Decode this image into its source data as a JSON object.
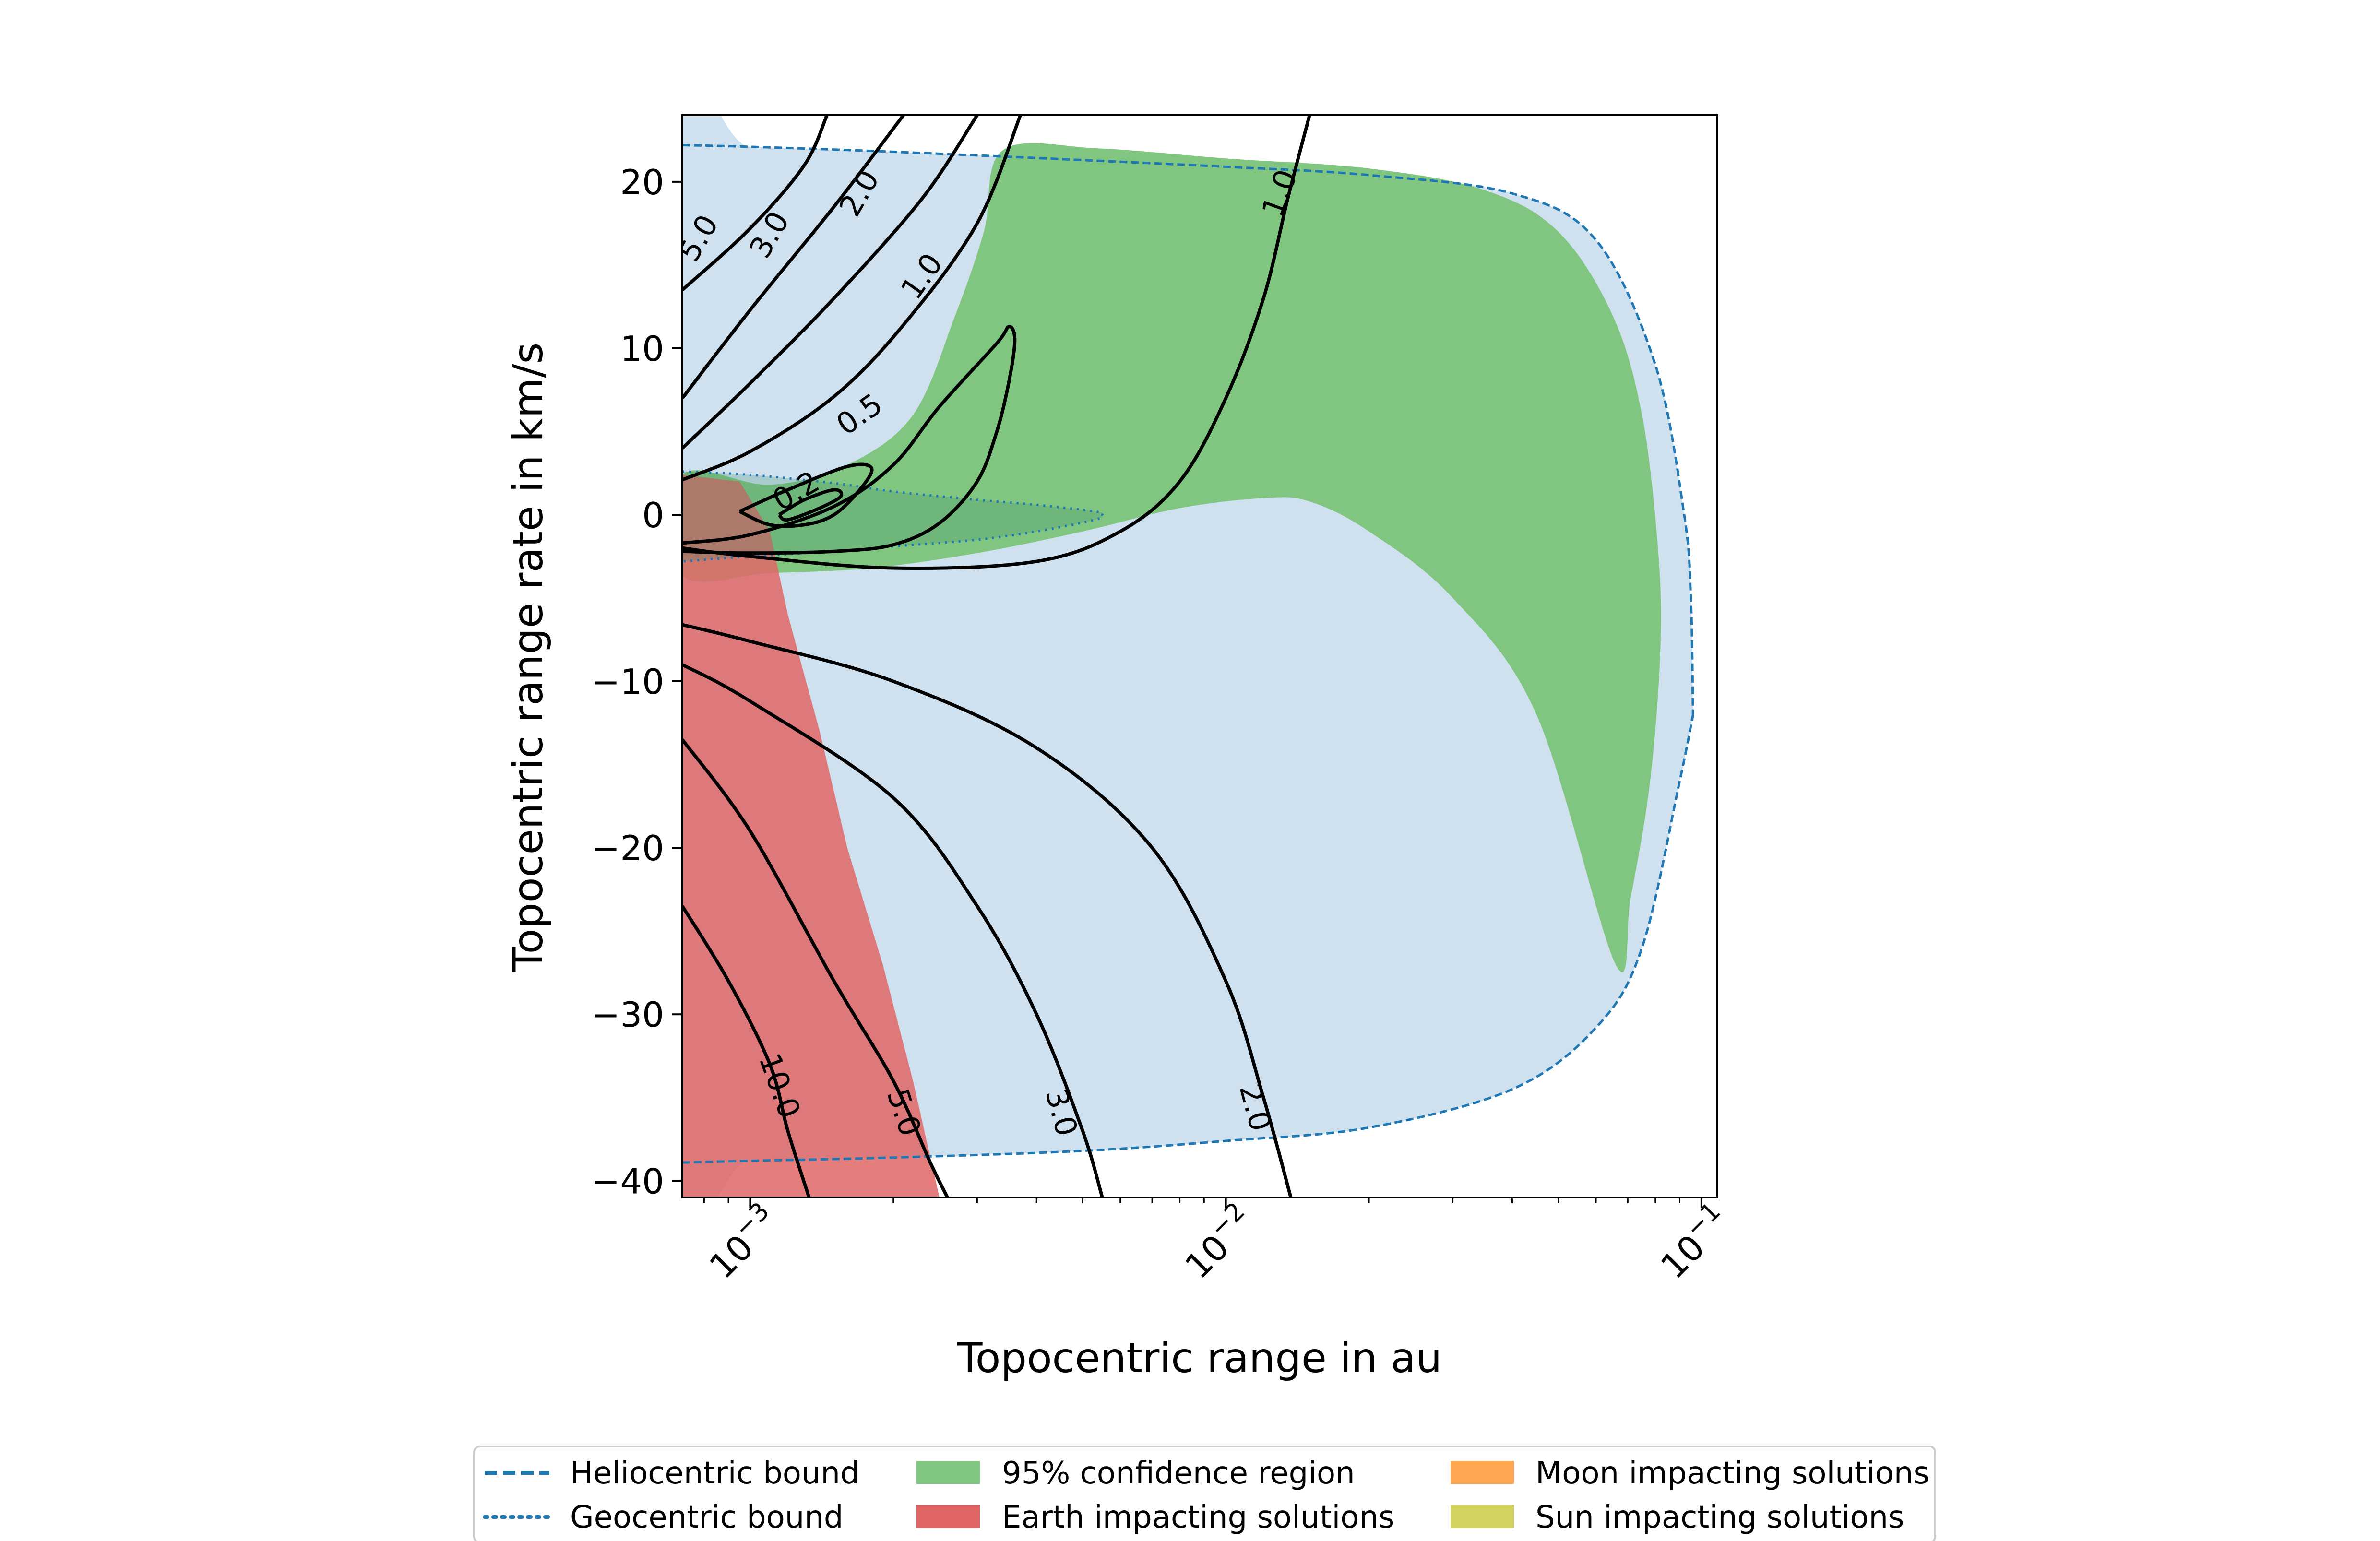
{
  "chart_data": {
    "type": "line",
    "title": "",
    "xlabel": "Topocentric range in au",
    "ylabel": "Topocentric range rate in km/s",
    "xscale": "log",
    "xlim": [
      0.00072,
      0.108
    ],
    "ylim": [
      -41,
      24
    ],
    "x_ticks": [
      {
        "value": 0.001,
        "base": "10",
        "exp": "−3"
      },
      {
        "value": 0.01,
        "base": "10",
        "exp": "−2"
      },
      {
        "value": 0.1,
        "base": "10",
        "exp": "−1"
      }
    ],
    "y_ticks": [
      {
        "value": 20,
        "label": "20"
      },
      {
        "value": 10,
        "label": "10"
      },
      {
        "value": 0,
        "label": "0"
      },
      {
        "value": -10,
        "label": "−10"
      },
      {
        "value": -20,
        "label": "−20"
      },
      {
        "value": -30,
        "label": "−30"
      },
      {
        "value": -40,
        "label": "−40"
      }
    ],
    "colors": {
      "admissible_region": "#cfe1ee",
      "confidence_region": "#80c580",
      "earth_impact": "#e06666",
      "moon_impact": "#ffa650",
      "sun_impact": "#d3d35f",
      "bounds": "#1f77b4",
      "contours": "#000000"
    },
    "legend": {
      "placement": "below the plot",
      "items": [
        {
          "label": "Heliocentric bound",
          "style": "dashed",
          "color": "#1f77b4"
        },
        {
          "label": "Geocentric bound",
          "style": "dotted",
          "color": "#1f77b4"
        },
        {
          "label": "95% confidence region",
          "style": "patch",
          "color": "#80c580"
        },
        {
          "label": "Earth impacting solutions",
          "style": "patch",
          "color": "#e06666"
        },
        {
          "label": "Moon impacting solutions",
          "style": "patch",
          "color": "#ffa650"
        },
        {
          "label": "Sun impacting solutions",
          "style": "patch",
          "color": "#d3d35f"
        }
      ]
    },
    "heliocentric_bound": {
      "upper": [
        [
          0.00072,
          22.2
        ],
        [
          0.001,
          22.1
        ],
        [
          0.002,
          21.8
        ],
        [
          0.005,
          21.3
        ],
        [
          0.01,
          20.9
        ],
        [
          0.02,
          20.4
        ],
        [
          0.04,
          19.3
        ],
        [
          0.06,
          16.5
        ],
        [
          0.08,
          9.0
        ],
        [
          0.092,
          0.0
        ],
        [
          0.095,
          -5.0
        ],
        [
          0.096,
          -12.0
        ]
      ],
      "lower": [
        [
          0.00072,
          -38.9
        ],
        [
          0.001,
          -38.8
        ],
        [
          0.002,
          -38.6
        ],
        [
          0.005,
          -38.2
        ],
        [
          0.01,
          -37.6
        ],
        [
          0.02,
          -36.8
        ],
        [
          0.04,
          -34.5
        ],
        [
          0.06,
          -30.8
        ],
        [
          0.075,
          -26.0
        ],
        [
          0.09,
          -16.0
        ],
        [
          0.096,
          -12.0
        ]
      ]
    },
    "geocentric_bound": [
      [
        0.00072,
        2.6
      ],
      [
        0.001,
        2.4
      ],
      [
        0.0015,
        1.9
      ],
      [
        0.002,
        1.4
      ],
      [
        0.003,
        0.9
      ],
      [
        0.004,
        0.6
      ],
      [
        0.0053,
        0.2
      ],
      [
        0.0055,
        0.0
      ],
      [
        0.0053,
        -0.3
      ],
      [
        0.004,
        -1.0
      ],
      [
        0.003,
        -1.5
      ],
      [
        0.002,
        -1.9
      ],
      [
        0.0015,
        -2.2
      ],
      [
        0.001,
        -2.5
      ],
      [
        0.00072,
        -2.8
      ]
    ],
    "confidence_region": [
      [
        0.0034,
        21.9
      ],
      [
        0.0054,
        22.0
      ],
      [
        0.01,
        21.4
      ],
      [
        0.02,
        20.8
      ],
      [
        0.035,
        19.5
      ],
      [
        0.05,
        17.0
      ],
      [
        0.065,
        12.0
      ],
      [
        0.075,
        6.0
      ],
      [
        0.081,
        -2.0
      ],
      [
        0.082,
        -8.0
      ],
      [
        0.078,
        -16.0
      ],
      [
        0.071,
        -23.0
      ],
      [
        0.066,
        -27.0
      ],
      [
        0.045,
        -12.0
      ],
      [
        0.03,
        -5.0
      ],
      [
        0.02,
        -1.0
      ],
      [
        0.015,
        0.8
      ],
      [
        0.012,
        1.0
      ],
      [
        0.008,
        0.4
      ],
      [
        0.005,
        -1.0
      ],
      [
        0.003,
        -2.3
      ],
      [
        0.0018,
        -3.2
      ],
      [
        0.0011,
        -3.5
      ],
      [
        0.00072,
        -3.6
      ],
      [
        0.00072,
        2.4
      ],
      [
        0.0011,
        1.8
      ],
      [
        0.0016,
        3.0
      ],
      [
        0.0022,
        6.0
      ],
      [
        0.0027,
        12.0
      ],
      [
        0.0031,
        17.0
      ],
      [
        0.0034,
        21.9
      ]
    ],
    "earth_impacting_region": [
      [
        0.00072,
        2.4
      ],
      [
        0.00095,
        2.0
      ],
      [
        0.0011,
        -1.0
      ],
      [
        0.0012,
        -6.0
      ],
      [
        0.0014,
        -13.0
      ],
      [
        0.0016,
        -20.0
      ],
      [
        0.0019,
        -27.0
      ],
      [
        0.0022,
        -34.0
      ],
      [
        0.0025,
        -41.0
      ],
      [
        0.00072,
        -41.0
      ]
    ],
    "contours": [
      {
        "label": "5.0",
        "label_at": [
          0.00078,
          16.6
        ],
        "rotate": -60,
        "points": [
          [
            0.00072,
            13.5
          ],
          [
            0.001,
            17.2
          ],
          [
            0.0013,
            21.0
          ],
          [
            0.00145,
            24.0
          ]
        ]
      },
      {
        "label": "3.0",
        "label_at": [
          0.0011,
          16.8
        ],
        "rotate": -60,
        "points": [
          [
            0.00072,
            7.0
          ],
          [
            0.001,
            12.3
          ],
          [
            0.0015,
            18.5
          ],
          [
            0.0021,
            24.0
          ]
        ]
      },
      {
        "label": "2.0",
        "label_at": [
          0.0017,
          19.3
        ],
        "rotate": -60,
        "points": [
          [
            0.00072,
            4.0
          ],
          [
            0.001,
            7.9
          ],
          [
            0.0015,
            13.0
          ],
          [
            0.0023,
            19.0
          ],
          [
            0.003,
            24.0
          ]
        ]
      },
      {
        "label": "1.0",
        "label_at": [
          0.0023,
          14.3
        ],
        "rotate": -55,
        "points": [
          [
            0.00072,
            2.1
          ],
          [
            0.001,
            3.8
          ],
          [
            0.0015,
            7.1
          ],
          [
            0.0021,
            11.4
          ],
          [
            0.003,
            17.5
          ],
          [
            0.0037,
            24.0
          ]
        ]
      },
      {
        "label": "1.0",
        "label_at": [
          0.013,
          19.3
        ],
        "rotate": -70,
        "points": [
          [
            0.00072,
            -2.0
          ],
          [
            0.001,
            -2.5
          ],
          [
            0.002,
            -3.2
          ],
          [
            0.004,
            -2.8
          ],
          [
            0.006,
            -1.0
          ],
          [
            0.008,
            2.0
          ],
          [
            0.01,
            7.0
          ],
          [
            0.012,
            13.0
          ],
          [
            0.0135,
            19.0
          ],
          [
            0.015,
            24.0
          ]
        ]
      },
      {
        "label": "0.5",
        "label_at": [
          0.0017,
          6.0
        ],
        "rotate": -35,
        "points": [
          [
            0.00072,
            -1.7
          ],
          [
            0.001,
            -1.2
          ],
          [
            0.0015,
            0.5
          ],
          [
            0.002,
            3.0
          ],
          [
            0.0025,
            6.5
          ],
          [
            0.0033,
            10.3
          ],
          [
            0.0035,
            11.3
          ],
          [
            0.0036,
            10.5
          ],
          [
            0.0035,
            8.0
          ],
          [
            0.0033,
            5.0
          ],
          [
            0.003,
            2.0
          ],
          [
            0.0025,
            -0.5
          ],
          [
            0.002,
            -1.8
          ],
          [
            0.0015,
            -2.2
          ],
          [
            0.001,
            -2.3
          ],
          [
            0.00072,
            -2.2
          ]
        ]
      },
      {
        "label": "0.2",
        "label_at": [
          0.00125,
          1.4
        ],
        "rotate": -30,
        "points": [
          [
            0.00095,
            0.2
          ],
          [
            0.0012,
            1.5
          ],
          [
            0.0016,
            2.9
          ],
          [
            0.0018,
            2.8
          ],
          [
            0.0017,
            1.5
          ],
          [
            0.0015,
            0.0
          ],
          [
            0.0013,
            -0.6
          ],
          [
            0.0011,
            -0.6
          ],
          [
            0.00095,
            0.2
          ]
        ]
      },
      {
        "label": "",
        "label_at": null,
        "rotate": 0,
        "points": [
          [
            0.00115,
            0.0
          ],
          [
            0.0013,
            0.9
          ],
          [
            0.0015,
            1.5
          ],
          [
            0.00155,
            1.1
          ],
          [
            0.0014,
            0.4
          ],
          [
            0.0012,
            -0.3
          ],
          [
            0.00115,
            0.0
          ]
        ]
      },
      {
        "label": "10.0",
        "label_at": [
          0.00115,
          -34.3
        ],
        "rotate": 70,
        "points": [
          [
            0.00072,
            -23.5
          ],
          [
            0.0009,
            -28.0
          ],
          [
            0.0011,
            -33.0
          ],
          [
            0.0012,
            -37.0
          ],
          [
            0.00133,
            -41.0
          ]
        ]
      },
      {
        "label": "5.0",
        "label_at": [
          0.0021,
          -35.9
        ],
        "rotate": 72,
        "points": [
          [
            0.00072,
            -13.5
          ],
          [
            0.001,
            -19.0
          ],
          [
            0.0015,
            -28.0
          ],
          [
            0.002,
            -34.0
          ],
          [
            0.0024,
            -39.0
          ],
          [
            0.0026,
            -41.0
          ]
        ]
      },
      {
        "label": "3.0",
        "label_at": [
          0.0045,
          -35.9
        ],
        "rotate": 75,
        "points": [
          [
            0.00072,
            -9.0
          ],
          [
            0.001,
            -11.2
          ],
          [
            0.002,
            -17.0
          ],
          [
            0.003,
            -23.5
          ],
          [
            0.004,
            -30.0
          ],
          [
            0.005,
            -37.0
          ],
          [
            0.0055,
            -41.0
          ]
        ]
      },
      {
        "label": "2.0",
        "label_at": [
          0.0115,
          -35.6
        ],
        "rotate": 75,
        "points": [
          [
            0.00072,
            -6.6
          ],
          [
            0.001,
            -7.6
          ],
          [
            0.002,
            -10.0
          ],
          [
            0.004,
            -14.0
          ],
          [
            0.007,
            -20.0
          ],
          [
            0.01,
            -28.0
          ],
          [
            0.012,
            -35.0
          ],
          [
            0.0137,
            -41.0
          ]
        ]
      }
    ]
  }
}
